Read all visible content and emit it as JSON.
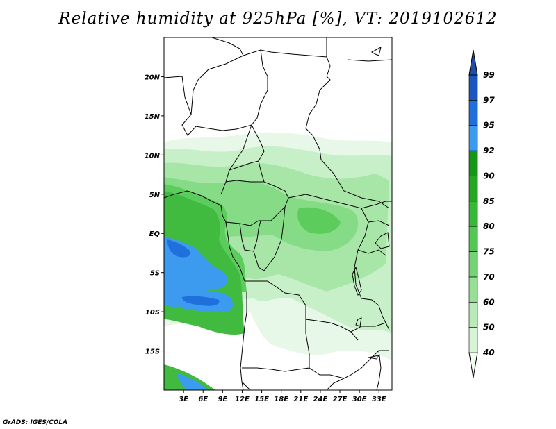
{
  "title": "Relative humidity at 925hPa [%], VT: 2019102612",
  "credit": "GrADS: IGES/COLA",
  "map": {
    "lon_range": [
      0,
      35
    ],
    "lat_range": [
      -20,
      25
    ],
    "lat_ticks": [
      {
        "value": 20,
        "label": "20N"
      },
      {
        "value": 15,
        "label": "15N"
      },
      {
        "value": 10,
        "label": "10N"
      },
      {
        "value": 5,
        "label": "5N"
      },
      {
        "value": 0,
        "label": "EQ"
      },
      {
        "value": -5,
        "label": "5S"
      },
      {
        "value": -10,
        "label": "10S"
      },
      {
        "value": -15,
        "label": "15S"
      }
    ],
    "lon_ticks": [
      {
        "value": 3,
        "label": "3E"
      },
      {
        "value": 6,
        "label": "6E"
      },
      {
        "value": 9,
        "label": "9E"
      },
      {
        "value": 12,
        "label": "12E"
      },
      {
        "value": 15,
        "label": "15E"
      },
      {
        "value": 18,
        "label": "18E"
      },
      {
        "value": 21,
        "label": "21E"
      },
      {
        "value": 24,
        "label": "24E"
      },
      {
        "value": 27,
        "label": "27E"
      },
      {
        "value": 30,
        "label": "30E"
      },
      {
        "value": 33,
        "label": "33E"
      }
    ]
  },
  "colorbar": {
    "levels": [
      "40",
      "50",
      "60",
      "70",
      "75",
      "80",
      "85",
      "90",
      "92",
      "95",
      "97",
      "99"
    ],
    "colors": [
      "#f0fff0",
      "#d6f5d6",
      "#b8ebb8",
      "#96e096",
      "#74d474",
      "#52c752",
      "#38b838",
      "#24a824",
      "#169616",
      "#3d9bef",
      "#1f6fdc",
      "#1a55c0",
      "#1e4fa8"
    ]
  }
}
